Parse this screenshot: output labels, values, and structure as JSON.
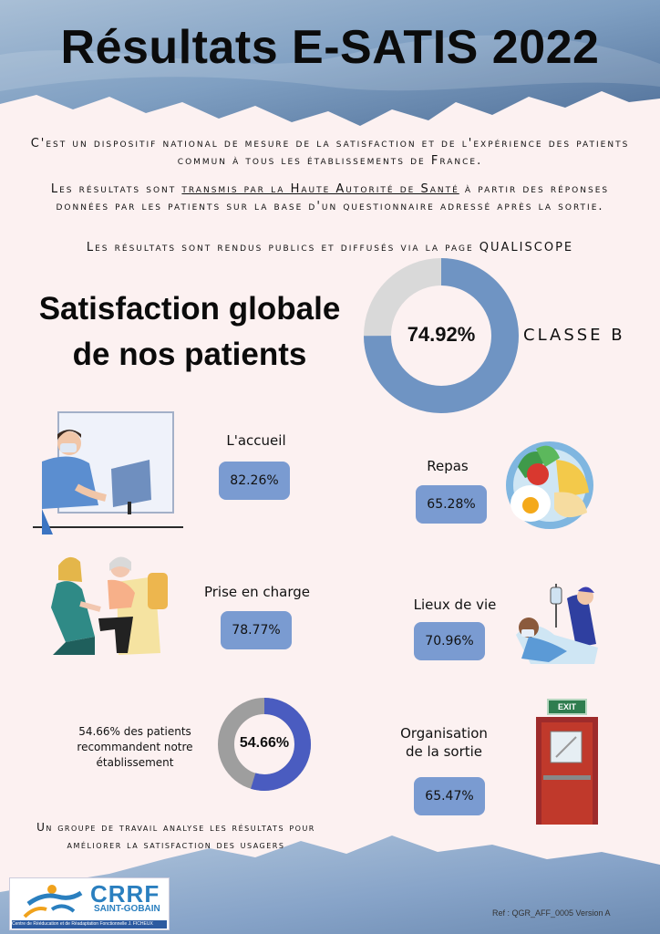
{
  "header": {
    "title": "Résultats E-SATIS 2022"
  },
  "intro": {
    "line1": "C'est un dispositif national de mesure de la satisfaction et de l'expérience des patients commun à tous les établissements de France.",
    "line2_a": "Les résultats sont",
    "line2_link": "transmis par la Haute Autorité de Santé",
    "line2_b": "à partir des réponses données par les patients sur la base d'un questionnaire adressé après la sortie.",
    "line3": "Les résultats sont rendus publics et diffusés via la page QUALISCOPE"
  },
  "global": {
    "title_line1": "Satisfaction globale",
    "title_line2": "de nos patients",
    "value_label": "74.92%",
    "value": 74.92,
    "classe": "CLASSE B"
  },
  "items": {
    "accueil": {
      "label": "L'accueil",
      "value": "82.26%"
    },
    "repas": {
      "label": "Repas",
      "value": "65.28%"
    },
    "prise_en_charge": {
      "label": "Prise en charge",
      "value": "78.77%"
    },
    "lieux_de_vie": {
      "label": "Lieux de vie",
      "value": "70.96%"
    },
    "organisation_sortie": {
      "label_line1": "Organisation",
      "label_line2": "de la sortie",
      "value": "65.47%"
    }
  },
  "recommend": {
    "text_line1": "54.66% des patients",
    "text_line2": "recommandent notre",
    "text_line3": "établissement",
    "value_label": "54.66%",
    "value": 54.66
  },
  "exit_sign": "EXIT",
  "footer": {
    "line1": "Un groupe de travail analyse les résultats pour",
    "line2": "améliorer la satisfaction des usagers",
    "ref": "Ref : QGR_AFF_0005 Version A"
  },
  "logo": {
    "name": "CRRF",
    "sub": "SAINT-GOBAIN",
    "caption": "Centre de Rééducation et de Réadaptation Fonctionnelle J. FICHEUX"
  },
  "colors": {
    "blue": "#6f94c3",
    "box": "#7a9bd1",
    "grey": "#d9d9d9",
    "donut2_blue": "#4a5cc0",
    "donut2_grey": "#9e9e9e",
    "background": "#fcf1f1"
  }
}
